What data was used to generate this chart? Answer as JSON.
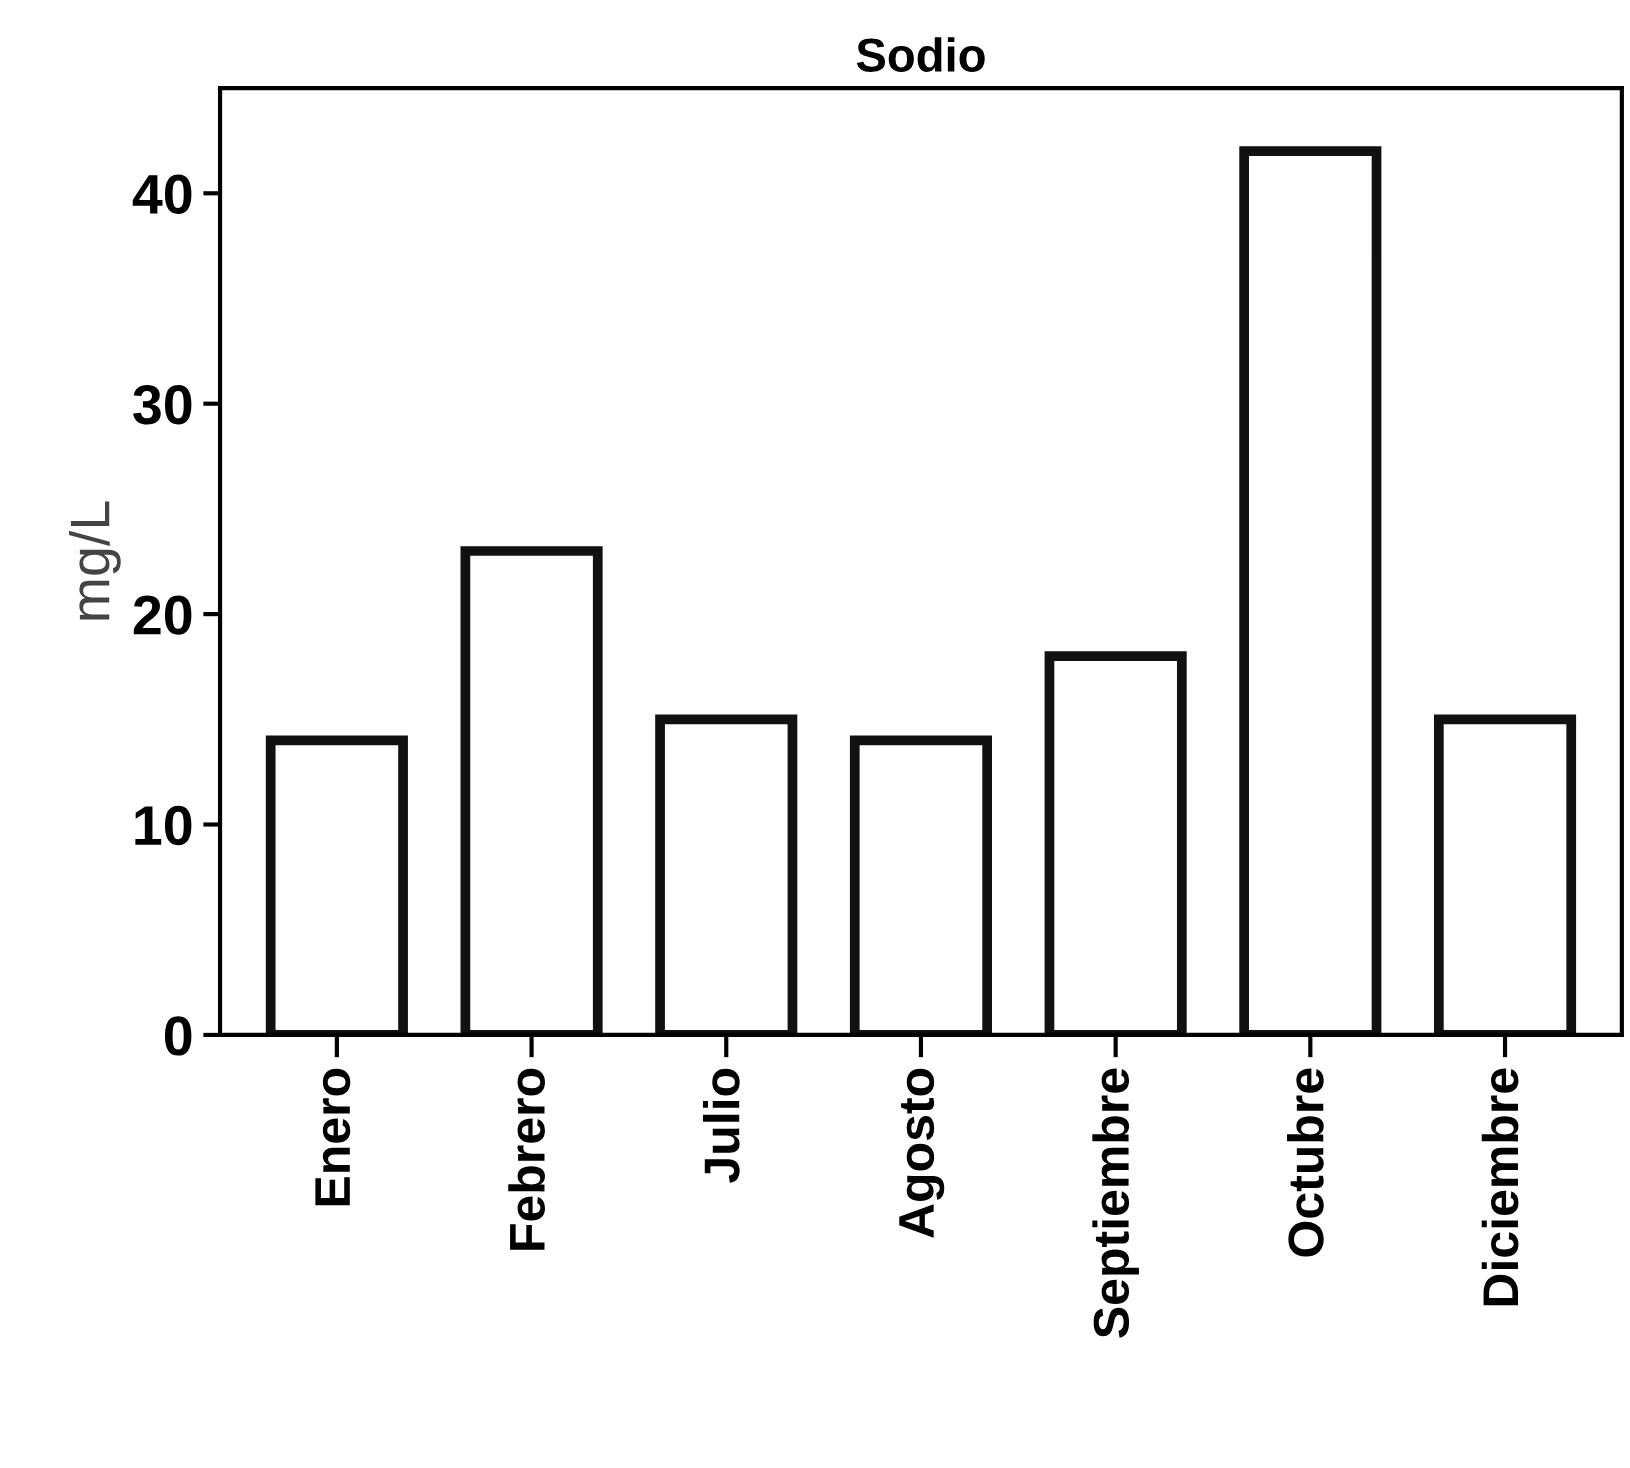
{
  "chart_data": {
    "type": "bar",
    "title": "Sodio",
    "ylabel": "mg/L",
    "categories": [
      "Enero",
      "Febrero",
      "Julio",
      "Agosto",
      "Septiembre",
      "Octubre",
      "Diciembre"
    ],
    "values": [
      14,
      23,
      15,
      14,
      18,
      42,
      15
    ],
    "color": "#ffffff",
    "ylim": [
      0,
      45
    ],
    "yticks": [
      0,
      10,
      20,
      30,
      40
    ],
    "grid": false
  }
}
